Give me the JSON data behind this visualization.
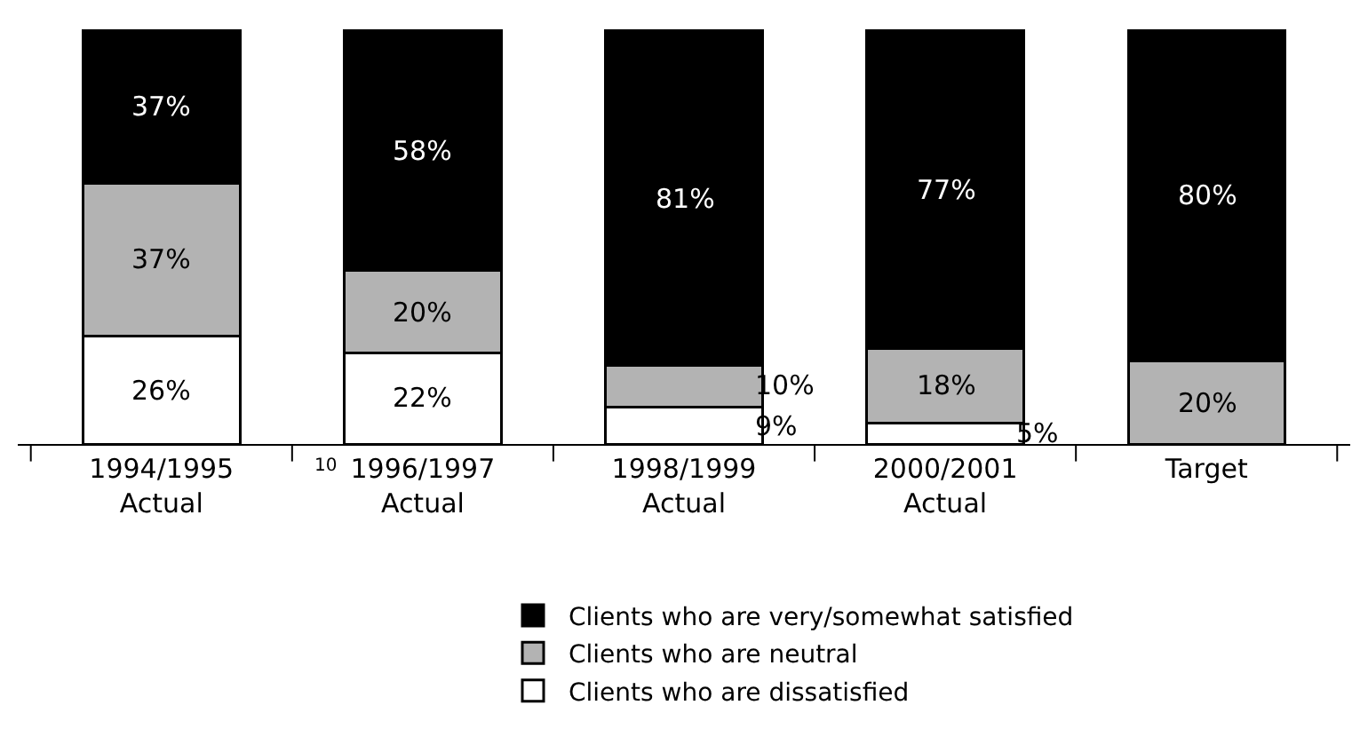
{
  "chart_data": {
    "type": "bar",
    "stacked": true,
    "categories": [
      "1994/1995\nActual",
      "1996/1997\nActual",
      "1998/1999\nActual",
      "2000/2001\nActual",
      "Target"
    ],
    "series": [
      {
        "name": "Clients who are dissatisfied",
        "color": "#ffffff",
        "values": [
          26,
          22,
          9,
          5,
          0
        ],
        "value_labels": [
          "26%",
          "22%",
          "9%",
          "5%",
          null
        ]
      },
      {
        "name": "Clients who are neutral",
        "color": "#b3b3b3",
        "values": [
          37,
          20,
          10,
          18,
          20
        ],
        "value_labels": [
          "37%",
          "20%",
          "10%",
          "18%",
          "20%"
        ]
      },
      {
        "name": "Clients who are very/somewhat satisfied",
        "color": "#000000",
        "values": [
          37,
          58,
          81,
          77,
          80
        ],
        "value_labels": [
          "37%",
          "58%",
          "81%",
          "77%",
          "80%"
        ]
      }
    ],
    "annotations": [
      "10"
    ],
    "legend": "bottom"
  }
}
